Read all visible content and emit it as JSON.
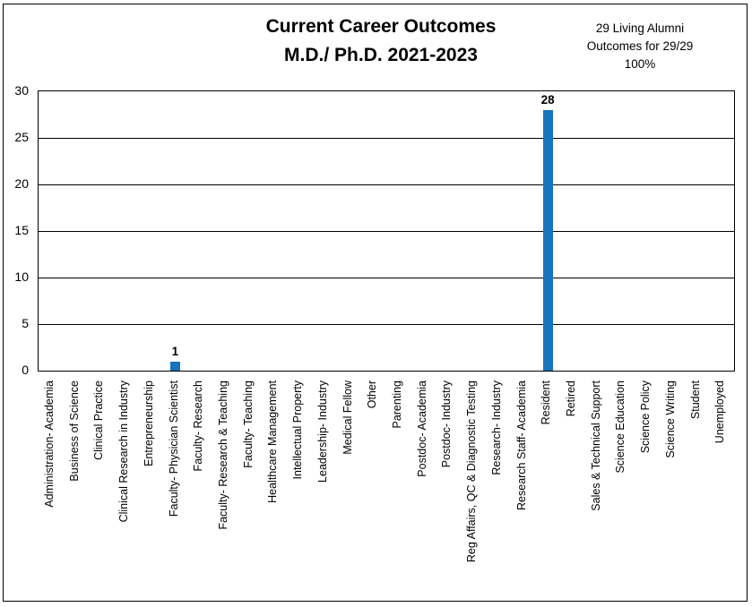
{
  "chart_data": {
    "type": "bar",
    "title": "Current Career Outcomes M.D./ Ph.D. 2021-2023",
    "title_lines": [
      "Current Career Outcomes",
      "M.D./ Ph.D. 2021-2023"
    ],
    "annotation_lines": [
      "29 Living Alumni",
      "Outcomes for 29/29",
      "100%"
    ],
    "categories": [
      "Administration- Academia",
      "Business of Science",
      "Clinical Practice",
      "Clinical Research in Industry",
      "Entrepreneurship",
      "Faculty- Physician Scientist",
      "Faculty- Research",
      "Faculty- Research & Teaching",
      "Faculty- Teaching",
      "Healthcare Management",
      "Intellectual Property",
      "Leadership- Industry",
      "Medical Fellow",
      "Other",
      "Parenting",
      "Postdoc- Academia",
      "Postdoc- Industry",
      "Reg Affairs, QC & Diagnostic Testing",
      "Research- Industry",
      "Research Staff- Academia",
      "Resident",
      "Retired",
      "Sales & Technical Support",
      "Science Education",
      "Science Policy",
      "Science Writing",
      "Student",
      "Unemployed"
    ],
    "values": [
      0,
      0,
      0,
      0,
      0,
      1,
      0,
      0,
      0,
      0,
      0,
      0,
      0,
      0,
      0,
      0,
      0,
      0,
      0,
      0,
      28,
      0,
      0,
      0,
      0,
      0,
      0,
      0
    ],
    "xlabel": "",
    "ylabel": "",
    "ylim": [
      0,
      30
    ],
    "y_ticks": [
      0,
      5,
      10,
      15,
      20,
      25,
      30
    ],
    "grid": true,
    "legend": false,
    "x_label_rotation_deg": 90,
    "data_labels_nonzero_only": true,
    "bar_color": "#1674BC",
    "text_color": "#000000",
    "border_color": "#000000"
  }
}
